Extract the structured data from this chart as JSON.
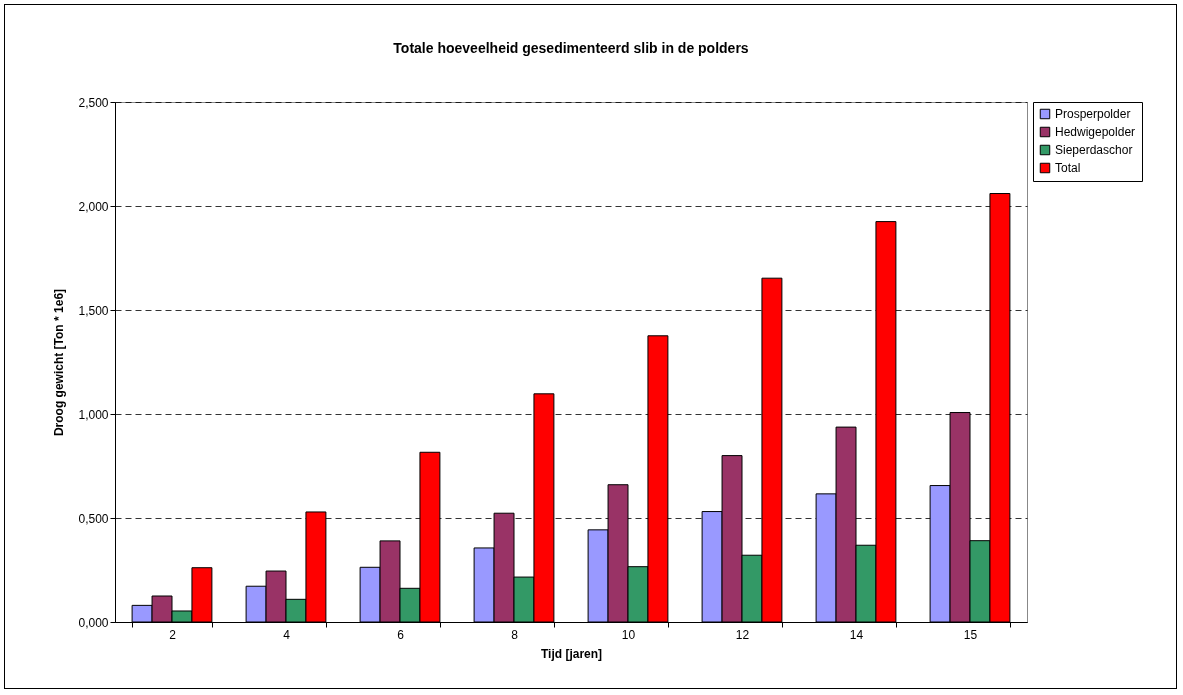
{
  "chart_data": {
    "type": "bar",
    "title": "Totale hoeveelheid gesedimenteerd slib in de polders",
    "xlabel": "Tijd [jaren]",
    "ylabel": "Droog gewicht [Ton * 1e6]",
    "categories": [
      "2",
      "4",
      "6",
      "8",
      "10",
      "12",
      "14",
      "15"
    ],
    "series": [
      {
        "name": "Prosperpolder",
        "color": "#9999ff",
        "values": [
          0.08,
          0.172,
          0.263,
          0.356,
          0.443,
          0.531,
          0.616,
          0.656
        ]
      },
      {
        "name": "Hedwigepolder",
        "color": "#993366",
        "values": [
          0.125,
          0.245,
          0.39,
          0.523,
          0.66,
          0.8,
          0.937,
          1.007
        ]
      },
      {
        "name": "Sieperdaschor",
        "color": "#339966",
        "values": [
          0.053,
          0.109,
          0.162,
          0.216,
          0.266,
          0.321,
          0.369,
          0.391
        ]
      },
      {
        "name": "Total",
        "color": "#ff0000",
        "values": [
          0.261,
          0.529,
          0.816,
          1.097,
          1.376,
          1.653,
          1.925,
          2.06
        ]
      }
    ],
    "ylim": [
      0,
      2.5
    ],
    "yticks": [
      {
        "value": 0,
        "label": "0,000"
      },
      {
        "value": 0.5,
        "label": "0,500"
      },
      {
        "value": 1,
        "label": "1,000"
      },
      {
        "value": 1.5,
        "label": "1,500"
      },
      {
        "value": 2,
        "label": "2,000"
      },
      {
        "value": 2.5,
        "label": "2,500"
      }
    ],
    "grid": "y",
    "legend": "right"
  }
}
